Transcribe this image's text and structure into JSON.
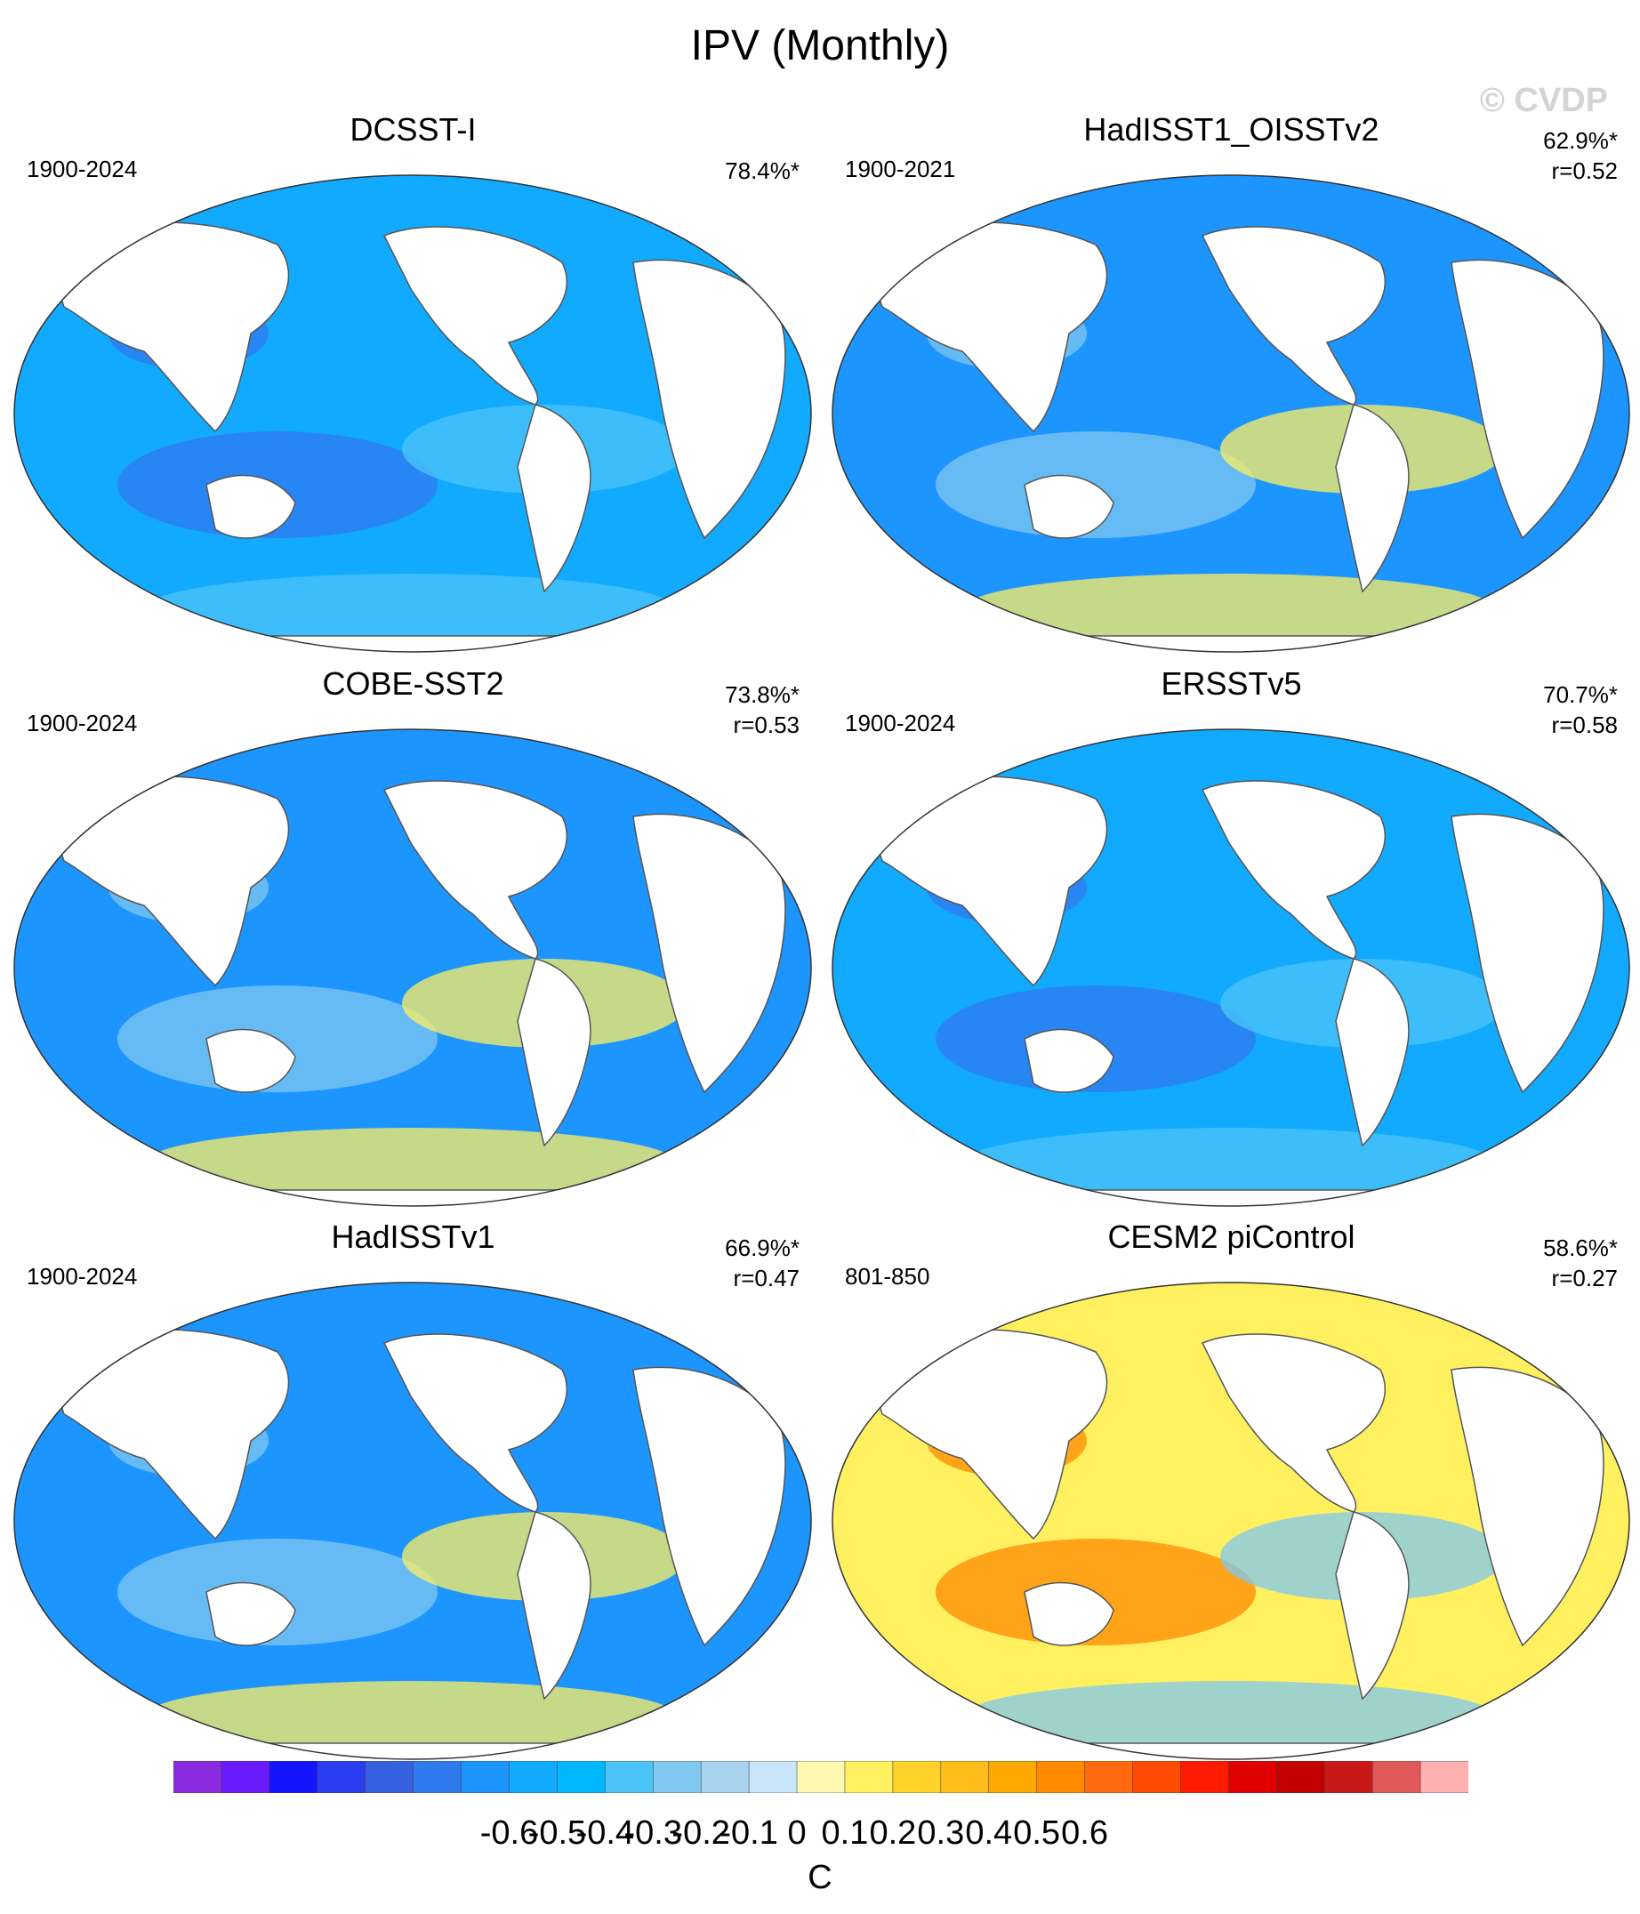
{
  "title": "IPV (Monthly)",
  "watermark": "© CVDP",
  "panels": [
    {
      "name": "DCSST-I",
      "period": "1900-2024",
      "pct": "78.4%*",
      "r": "",
      "style": "blue"
    },
    {
      "name": "HadISST1_OISSTv2",
      "period": "1900-2021",
      "pct": "62.9%*",
      "r": "r=0.52",
      "style": "blue-light"
    },
    {
      "name": "COBE-SST2",
      "period": "1900-2024",
      "pct": "73.8%*",
      "r": "r=0.53",
      "style": "blue-light"
    },
    {
      "name": "ERSSTv5",
      "period": "1900-2024",
      "pct": "70.7%*",
      "r": "r=0.58",
      "style": "blue"
    },
    {
      "name": "HadISSTv1",
      "period": "1900-2024",
      "pct": "66.9%*",
      "r": "r=0.47",
      "style": "blue-light"
    },
    {
      "name": "CESM2 piControl",
      "period": "801-850",
      "pct": "58.6%*",
      "r": "r=0.27",
      "style": "warm"
    }
  ],
  "colorbar": {
    "colors": [
      "#8a2be2",
      "#6a1aff",
      "#1414ff",
      "#2a3cf0",
      "#3560e0",
      "#2f7aef",
      "#1d95ff",
      "#12aaff",
      "#00b8ff",
      "#4cc4f8",
      "#80c8f0",
      "#a8d4f0",
      "#c8e6f8",
      "#fff8b0",
      "#fff060",
      "#ffd22a",
      "#ffbe1a",
      "#ffa800",
      "#ff8a00",
      "#ff6a10",
      "#ff4a00",
      "#ff1a00",
      "#e00000",
      "#c40000",
      "#c81818",
      "#e05858",
      "#ffb0b0"
    ],
    "ticks": [
      "-0.6",
      "-0.5",
      "-0.4",
      "-0.3",
      "-0.2",
      "-0.1",
      "0",
      "0.1",
      "0.2",
      "0.3",
      "0.4",
      "0.5",
      "0.6"
    ],
    "unit": "C"
  }
}
